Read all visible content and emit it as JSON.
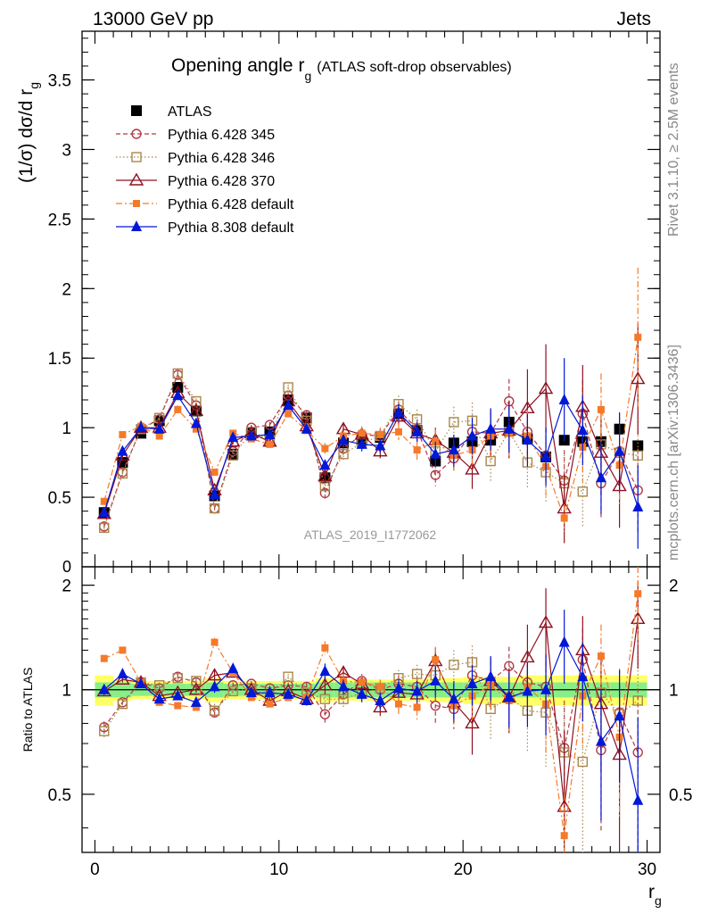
{
  "header": {
    "energy_label": "13000 GeV pp",
    "process_label": "Jets"
  },
  "side_labels": {
    "rivet_prefix": "Rivet 3.1.10, ",
    "rivet_suffix": " 2.5M events",
    "rivet_symbol": "≥",
    "mcplots": "mcplots.cern.ch [arXiv:1306.3436]"
  },
  "analysis_label": "ATLAS_2019_I1772062",
  "colors": {
    "ATLAS": "#000000",
    "p345": "#b03a48",
    "p346": "#a8884a",
    "p370": "#8f1020",
    "p6def": "#f47a2a",
    "p8": "#0018d8"
  },
  "chart_data": [
    {
      "type": "scatter",
      "panel": "main",
      "title_main": "Opening angle r",
      "title_sub": "g",
      "title_tail": "(ATLAS soft-drop observables)",
      "ylabel_prefix": "(1/σ) dσ/d r",
      "ylabel_sub": "g",
      "ylim": [
        0,
        3.85
      ],
      "xlim": [
        -0.7,
        30.7
      ],
      "yticks": [
        "0.5",
        "1",
        "1.5",
        "2",
        "2.5",
        "3",
        "3.5"
      ],
      "ytick_values": [
        0.5,
        1,
        1.5,
        2,
        2.5,
        3,
        3.5
      ],
      "y_cut_label": "0",
      "x": [
        0.5,
        1.5,
        2.5,
        3.5,
        4.5,
        5.5,
        6.5,
        7.5,
        8.5,
        9.5,
        10.5,
        11.5,
        12.5,
        13.5,
        14.5,
        15.5,
        16.5,
        17.5,
        18.5,
        19.5,
        20.5,
        21.5,
        22.5,
        23.5,
        24.5,
        25.5,
        26.5,
        27.5,
        28.5,
        29.5
      ],
      "series": [
        {
          "name": "ATLAS",
          "key": "ATLAS",
          "marker": "filled-square",
          "line": "none",
          "values": [
            0.39,
            0.75,
            0.96,
            1.05,
            1.29,
            1.12,
            0.51,
            0.81,
            0.96,
            0.97,
            1.2,
            1.07,
            0.64,
            0.89,
            0.91,
            0.93,
            1.1,
            0.98,
            0.76,
            0.89,
            0.9,
            0.91,
            1.04,
            0.92,
            0.79,
            0.91,
            0.9,
            0.9,
            0.99,
            0.87
          ],
          "errors": [
            0.02,
            0.02,
            0.02,
            0.02,
            0.02,
            0.02,
            0.02,
            0.02,
            0.02,
            0.02,
            0.02,
            0.02,
            0.02,
            0.02,
            0.02,
            0.02,
            0.02,
            0.02,
            0.02,
            0.02,
            0.02,
            0.02,
            0.02,
            0.02,
            0.02,
            0.02,
            0.02,
            0.02,
            0.02,
            0.02
          ]
        },
        {
          "name": "Pythia 6.428 345",
          "key": "p345",
          "marker": "open-circle",
          "line": "dashed",
          "values": [
            0.29,
            0.68,
            0.99,
            1.06,
            1.38,
            1.16,
            0.42,
            0.83,
            1.0,
            1.02,
            1.23,
            1.09,
            0.53,
            0.85,
            0.95,
            0.94,
            1.13,
            0.99,
            0.66,
            0.78,
            0.97,
            0.96,
            1.19,
            0.97,
            0.8,
            0.62,
            1.1,
            0.6,
            0.83,
            0.55
          ],
          "errors": [
            0.02,
            0.02,
            0.02,
            0.02,
            0.03,
            0.02,
            0.02,
            0.02,
            0.02,
            0.02,
            0.02,
            0.03,
            0.04,
            0.04,
            0.05,
            0.05,
            0.06,
            0.07,
            0.08,
            0.1,
            0.12,
            0.14,
            0.16,
            0.18,
            0.2,
            0.22,
            0.24,
            0.25,
            0.25,
            0.3
          ]
        },
        {
          "name": "Pythia 6.428 346",
          "key": "p346",
          "marker": "open-square",
          "line": "dotted",
          "values": [
            0.28,
            0.67,
            0.99,
            1.07,
            1.39,
            1.19,
            0.42,
            0.8,
            0.97,
            0.91,
            1.29,
            1.05,
            0.58,
            0.81,
            0.89,
            0.94,
            1.17,
            1.06,
            0.83,
            1.04,
            1.05,
            0.76,
            0.97,
            0.75,
            0.68,
            0.6,
            0.54,
            0.88,
            0.82,
            0.8
          ],
          "errors": [
            0.02,
            0.02,
            0.02,
            0.02,
            0.03,
            0.02,
            0.02,
            0.02,
            0.02,
            0.02,
            0.02,
            0.03,
            0.04,
            0.04,
            0.05,
            0.05,
            0.06,
            0.07,
            0.09,
            0.11,
            0.13,
            0.15,
            0.17,
            0.19,
            0.21,
            0.23,
            0.25,
            0.26,
            0.28,
            0.3
          ]
        },
        {
          "name": "Pythia 6.428 370",
          "key": "p370",
          "marker": "open-triangle",
          "line": "solid",
          "values": [
            0.38,
            0.8,
            1.0,
            1.0,
            1.25,
            1.12,
            0.55,
            0.9,
            0.96,
            0.9,
            1.19,
            1.01,
            0.65,
            0.99,
            0.95,
            0.83,
            1.08,
            0.96,
            0.91,
            0.82,
            0.7,
            0.96,
            0.98,
            1.14,
            1.28,
            0.42,
            1.15,
            0.82,
            0.58,
            1.35
          ],
          "errors": [
            0.02,
            0.02,
            0.02,
            0.02,
            0.03,
            0.02,
            0.02,
            0.02,
            0.02,
            0.02,
            0.02,
            0.03,
            0.04,
            0.04,
            0.05,
            0.05,
            0.06,
            0.07,
            0.09,
            0.11,
            0.14,
            0.17,
            0.2,
            0.28,
            0.32,
            0.25,
            0.3,
            0.3,
            0.3,
            0.4
          ]
        },
        {
          "name": "Pythia 6.428 default",
          "key": "p6def",
          "marker": "filled-small-square",
          "line": "dashdot",
          "values": [
            0.47,
            0.95,
            1.01,
            0.94,
            1.13,
            0.99,
            0.68,
            0.96,
            0.92,
            0.88,
            1.1,
            0.98,
            0.85,
            0.94,
            0.96,
            0.95,
            0.97,
            0.84,
            0.9,
            0.8,
            0.84,
            0.94,
            0.96,
            0.94,
            0.72,
            0.35,
            0.86,
            1.13,
            0.73,
            1.65
          ],
          "errors": [
            0.02,
            0.02,
            0.02,
            0.02,
            0.03,
            0.02,
            0.02,
            0.02,
            0.02,
            0.02,
            0.02,
            0.03,
            0.04,
            0.04,
            0.05,
            0.05,
            0.06,
            0.07,
            0.09,
            0.11,
            0.13,
            0.15,
            0.17,
            0.19,
            0.21,
            0.1,
            0.25,
            0.26,
            0.28,
            0.5
          ]
        },
        {
          "name": "Pythia 8.308 default",
          "key": "p8",
          "marker": "filled-triangle",
          "line": "solid",
          "values": [
            0.39,
            0.83,
            1.0,
            0.99,
            1.23,
            1.03,
            0.52,
            0.93,
            0.94,
            0.95,
            1.16,
            0.99,
            0.73,
            0.91,
            0.88,
            0.87,
            1.11,
            0.97,
            0.81,
            0.84,
            0.94,
            0.99,
            0.99,
            0.91,
            0.79,
            1.2,
            0.98,
            0.64,
            0.83,
            0.43
          ],
          "errors": [
            0.02,
            0.02,
            0.02,
            0.02,
            0.03,
            0.02,
            0.02,
            0.02,
            0.02,
            0.02,
            0.02,
            0.03,
            0.04,
            0.04,
            0.05,
            0.05,
            0.06,
            0.07,
            0.09,
            0.11,
            0.13,
            0.15,
            0.17,
            0.19,
            0.21,
            0.3,
            0.25,
            0.26,
            0.28,
            0.3
          ]
        }
      ]
    },
    {
      "type": "scatter",
      "panel": "ratio",
      "ylabel": "Ratio to ATLAS",
      "ylim": [
        0.34,
        2.26
      ],
      "yticks": [
        "0.5",
        "1",
        "2"
      ],
      "ytick_values": [
        0.5,
        1,
        2
      ],
      "xlim": [
        -0.7,
        30.7
      ],
      "xticks": [
        "0",
        "10",
        "20",
        "30"
      ],
      "xtick_values": [
        0,
        10,
        20,
        30
      ],
      "xlabel_main": "r",
      "xlabel_sub": "g",
      "x": [
        0.5,
        1.5,
        2.5,
        3.5,
        4.5,
        5.5,
        6.5,
        7.5,
        8.5,
        9.5,
        10.5,
        11.5,
        12.5,
        13.5,
        14.5,
        15.5,
        16.5,
        17.5,
        18.5,
        19.5,
        20.5,
        21.5,
        22.5,
        23.5,
        24.5,
        25.5,
        26.5,
        27.5,
        28.5,
        29.5
      ],
      "band_green": [
        0.05,
        0.05,
        0.04,
        0.04,
        0.04,
        0.04,
        0.05,
        0.04,
        0.04,
        0.04,
        0.04,
        0.04,
        0.05,
        0.05,
        0.05,
        0.05,
        0.05,
        0.05,
        0.05,
        0.05,
        0.05,
        0.05,
        0.05,
        0.05,
        0.05,
        0.05,
        0.05,
        0.05,
        0.05,
        0.05
      ],
      "band_yellow": [
        0.1,
        0.07,
        0.06,
        0.06,
        0.06,
        0.06,
        0.08,
        0.06,
        0.06,
        0.06,
        0.06,
        0.06,
        0.08,
        0.07,
        0.07,
        0.07,
        0.07,
        0.07,
        0.08,
        0.08,
        0.09,
        0.09,
        0.09,
        0.1,
        0.1,
        0.1,
        0.1,
        0.1,
        0.1,
        0.1
      ],
      "series": [
        {
          "name": "Pythia 6.428 345",
          "key": "p345",
          "marker": "open-circle",
          "line": "dashed",
          "values": [
            0.78,
            0.92,
            1.05,
            1.01,
            1.09,
            1.05,
            0.86,
            1.03,
            1.04,
            1.01,
            1.03,
            1.02,
            0.85,
            0.97,
            1.06,
            1.0,
            1.04,
            1.02,
            0.9,
            0.88,
            1.1,
            1.06,
            1.17,
            1.05,
            1.02,
            0.68,
            1.22,
            0.67,
            0.86,
            0.66
          ],
          "errors": [
            0.03,
            0.02,
            0.02,
            0.02,
            0.02,
            0.02,
            0.04,
            0.02,
            0.02,
            0.02,
            0.02,
            0.03,
            0.06,
            0.05,
            0.05,
            0.05,
            0.06,
            0.07,
            0.1,
            0.11,
            0.13,
            0.15,
            0.16,
            0.2,
            0.25,
            0.25,
            0.28,
            0.28,
            0.28,
            0.35
          ]
        },
        {
          "name": "Pythia 6.428 346",
          "key": "p346",
          "marker": "open-square",
          "line": "dotted",
          "values": [
            0.76,
            0.91,
            1.05,
            1.03,
            1.08,
            1.06,
            0.87,
            0.99,
            1.01,
            0.95,
            1.09,
            0.98,
            0.94,
            0.94,
            0.98,
            1.01,
            1.08,
            1.11,
            1.1,
            1.18,
            1.2,
            0.88,
            0.95,
            0.87,
            0.86,
            0.66,
            0.62,
            0.98,
            0.85,
            0.93
          ],
          "errors": [
            0.03,
            0.02,
            0.02,
            0.02,
            0.02,
            0.02,
            0.04,
            0.02,
            0.02,
            0.02,
            0.02,
            0.03,
            0.06,
            0.05,
            0.05,
            0.05,
            0.06,
            0.07,
            0.11,
            0.12,
            0.14,
            0.16,
            0.17,
            0.21,
            0.26,
            0.26,
            0.28,
            0.29,
            0.3,
            0.35
          ]
        },
        {
          "name": "Pythia 6.428 370",
          "key": "p370",
          "marker": "open-triangle",
          "line": "solid",
          "values": [
            0.99,
            1.07,
            1.05,
            0.96,
            0.98,
            1.0,
            1.1,
            1.12,
            1.0,
            0.93,
            0.99,
            0.94,
            1.03,
            1.12,
            1.04,
            0.89,
            0.98,
            0.97,
            1.21,
            0.92,
            0.8,
            1.06,
            0.95,
            1.24,
            1.56,
            0.46,
            1.3,
            0.91,
            0.65,
            1.6
          ],
          "errors": [
            0.03,
            0.02,
            0.02,
            0.02,
            0.02,
            0.02,
            0.04,
            0.02,
            0.02,
            0.02,
            0.02,
            0.03,
            0.06,
            0.05,
            0.05,
            0.05,
            0.06,
            0.07,
            0.11,
            0.12,
            0.15,
            0.18,
            0.2,
            0.3,
            0.4,
            0.3,
            0.33,
            0.33,
            0.33,
            0.45
          ]
        },
        {
          "name": "Pythia 6.428 default",
          "key": "p6def",
          "marker": "filled-small-square",
          "line": "dashdot",
          "values": [
            1.23,
            1.3,
            1.05,
            0.92,
            0.9,
            0.89,
            1.37,
            1.12,
            0.95,
            0.91,
            0.95,
            0.95,
            1.32,
            1.06,
            1.05,
            1.02,
            0.91,
            0.89,
            1.22,
            0.9,
            0.96,
            1.03,
            0.93,
            1.02,
            0.91,
            0.38,
            0.96,
            1.25,
            0.73,
            1.89
          ],
          "errors": [
            0.03,
            0.02,
            0.02,
            0.02,
            0.02,
            0.02,
            0.04,
            0.02,
            0.02,
            0.02,
            0.02,
            0.03,
            0.06,
            0.05,
            0.05,
            0.05,
            0.06,
            0.07,
            0.11,
            0.12,
            0.14,
            0.16,
            0.17,
            0.21,
            0.26,
            0.12,
            0.28,
            0.29,
            0.3,
            0.55
          ]
        },
        {
          "name": "Pythia 8.308 default",
          "key": "p8",
          "marker": "filled-triangle",
          "line": "solid",
          "values": [
            1.0,
            1.11,
            1.04,
            0.94,
            0.96,
            0.92,
            1.02,
            1.15,
            0.98,
            0.98,
            0.97,
            0.93,
            1.13,
            1.02,
            0.97,
            0.93,
            1.01,
            0.99,
            1.06,
            0.94,
            1.04,
            1.09,
            0.95,
            0.99,
            1.0,
            1.37,
            1.09,
            0.71,
            0.84,
            0.48
          ],
          "errors": [
            0.03,
            0.02,
            0.02,
            0.02,
            0.02,
            0.02,
            0.04,
            0.02,
            0.02,
            0.02,
            0.02,
            0.03,
            0.06,
            0.05,
            0.05,
            0.05,
            0.06,
            0.07,
            0.11,
            0.12,
            0.14,
            0.16,
            0.17,
            0.21,
            0.26,
            0.33,
            0.28,
            0.29,
            0.3,
            0.35
          ]
        }
      ]
    }
  ]
}
